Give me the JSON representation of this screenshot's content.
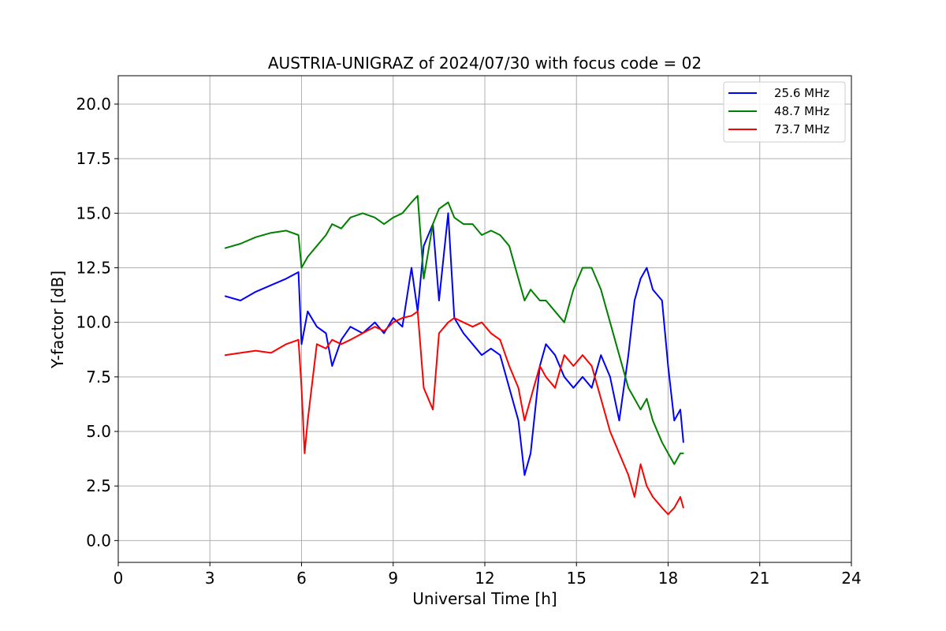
{
  "chart_data": {
    "type": "line",
    "title": "AUSTRIA-UNIGRAZ of 2024/07/30 with focus code = 02",
    "xlabel": "Universal Time [h]",
    "ylabel": "Y-factor [dB]",
    "xlim": [
      0,
      24
    ],
    "ylim": [
      -1,
      21.3
    ],
    "xticks": [
      0,
      3,
      6,
      9,
      12,
      15,
      18,
      21,
      24
    ],
    "xtick_labels": [
      "0",
      "3",
      "6",
      "9",
      "12",
      "15",
      "18",
      "21",
      "24"
    ],
    "yticks": [
      0,
      2.5,
      5,
      7.5,
      10,
      12.5,
      15,
      17.5,
      20
    ],
    "ytick_labels": [
      "0.0",
      "2.5",
      "5.0",
      "7.5",
      "10.0",
      "12.5",
      "15.0",
      "17.5",
      "20.0"
    ],
    "grid": true,
    "legend_position": "top-right",
    "series": [
      {
        "name": "25.6 MHz",
        "color": "#0000ff",
        "x": [
          3.5,
          4.0,
          4.5,
          5.0,
          5.5,
          5.9,
          6.0,
          6.2,
          6.5,
          6.8,
          7.0,
          7.3,
          7.6,
          8.0,
          8.4,
          8.7,
          9.0,
          9.3,
          9.6,
          9.8,
          10.0,
          10.3,
          10.5,
          10.8,
          11.0,
          11.3,
          11.6,
          11.9,
          12.2,
          12.5,
          12.8,
          13.1,
          13.3,
          13.5,
          13.8,
          14.0,
          14.3,
          14.6,
          14.9,
          15.2,
          15.5,
          15.8,
          16.1,
          16.4,
          16.7,
          16.9,
          17.1,
          17.3,
          17.5,
          17.8,
          18.0,
          18.2,
          18.4,
          18.5
        ],
        "y": [
          11.2,
          11.0,
          11.4,
          11.7,
          12.0,
          12.3,
          9.0,
          10.5,
          9.8,
          9.5,
          8.0,
          9.2,
          9.8,
          9.5,
          10.0,
          9.5,
          10.2,
          9.8,
          12.5,
          10.5,
          13.5,
          14.5,
          11.0,
          15.0,
          10.2,
          9.5,
          9.0,
          8.5,
          8.8,
          8.5,
          7.0,
          5.5,
          3.0,
          4.0,
          8.0,
          9.0,
          8.5,
          7.5,
          7.0,
          7.5,
          7.0,
          8.5,
          7.5,
          5.5,
          8.5,
          11.0,
          12.0,
          12.5,
          11.5,
          11.0,
          8.0,
          5.5,
          6.0,
          4.5
        ]
      },
      {
        "name": "48.7 MHz",
        "color": "#008000",
        "x": [
          3.5,
          4.0,
          4.5,
          5.0,
          5.5,
          5.9,
          6.0,
          6.2,
          6.5,
          6.8,
          7.0,
          7.3,
          7.6,
          8.0,
          8.4,
          8.7,
          9.0,
          9.3,
          9.6,
          9.8,
          10.0,
          10.3,
          10.5,
          10.8,
          11.0,
          11.3,
          11.6,
          11.9,
          12.2,
          12.5,
          12.8,
          13.1,
          13.3,
          13.5,
          13.8,
          14.0,
          14.3,
          14.6,
          14.9,
          15.2,
          15.5,
          15.8,
          16.1,
          16.4,
          16.7,
          16.9,
          17.1,
          17.3,
          17.5,
          17.8,
          18.0,
          18.2,
          18.4,
          18.5
        ],
        "y": [
          13.4,
          13.6,
          13.9,
          14.1,
          14.2,
          14.0,
          12.5,
          13.0,
          13.5,
          14.0,
          14.5,
          14.3,
          14.8,
          15.0,
          14.8,
          14.5,
          14.8,
          15.0,
          15.5,
          15.8,
          12.0,
          14.5,
          15.2,
          15.5,
          14.8,
          14.5,
          14.5,
          14.0,
          14.2,
          14.0,
          13.5,
          12.0,
          11.0,
          11.5,
          11.0,
          11.0,
          10.5,
          10.0,
          11.5,
          12.5,
          12.5,
          11.5,
          10.0,
          8.5,
          7.0,
          6.5,
          6.0,
          6.5,
          5.5,
          4.5,
          4.0,
          3.5,
          4.0,
          4.0
        ]
      },
      {
        "name": "73.7 MHz",
        "color": "#ff0000",
        "x": [
          3.5,
          4.0,
          4.5,
          5.0,
          5.5,
          5.9,
          6.0,
          6.1,
          6.2,
          6.5,
          6.8,
          7.0,
          7.3,
          7.6,
          8.0,
          8.4,
          8.7,
          9.0,
          9.3,
          9.6,
          9.8,
          10.0,
          10.3,
          10.5,
          10.8,
          11.0,
          11.3,
          11.6,
          11.9,
          12.2,
          12.5,
          12.8,
          13.1,
          13.3,
          13.5,
          13.8,
          14.0,
          14.3,
          14.6,
          14.9,
          15.2,
          15.5,
          15.8,
          16.1,
          16.4,
          16.7,
          16.9,
          17.1,
          17.3,
          17.5,
          17.8,
          18.0,
          18.2,
          18.4,
          18.5
        ],
        "y": [
          8.5,
          8.6,
          8.7,
          8.6,
          9.0,
          9.2,
          7.0,
          4.0,
          5.5,
          9.0,
          8.8,
          9.2,
          9.0,
          9.2,
          9.5,
          9.8,
          9.6,
          10.0,
          10.2,
          10.3,
          10.5,
          7.0,
          6.0,
          9.5,
          10.0,
          10.2,
          10.0,
          9.8,
          10.0,
          9.5,
          9.2,
          8.0,
          7.0,
          5.5,
          6.5,
          8.0,
          7.5,
          7.0,
          8.5,
          8.0,
          8.5,
          8.0,
          6.5,
          5.0,
          4.0,
          3.0,
          2.0,
          3.5,
          2.5,
          2.0,
          1.5,
          1.2,
          1.5,
          2.0,
          1.5
        ]
      }
    ]
  }
}
